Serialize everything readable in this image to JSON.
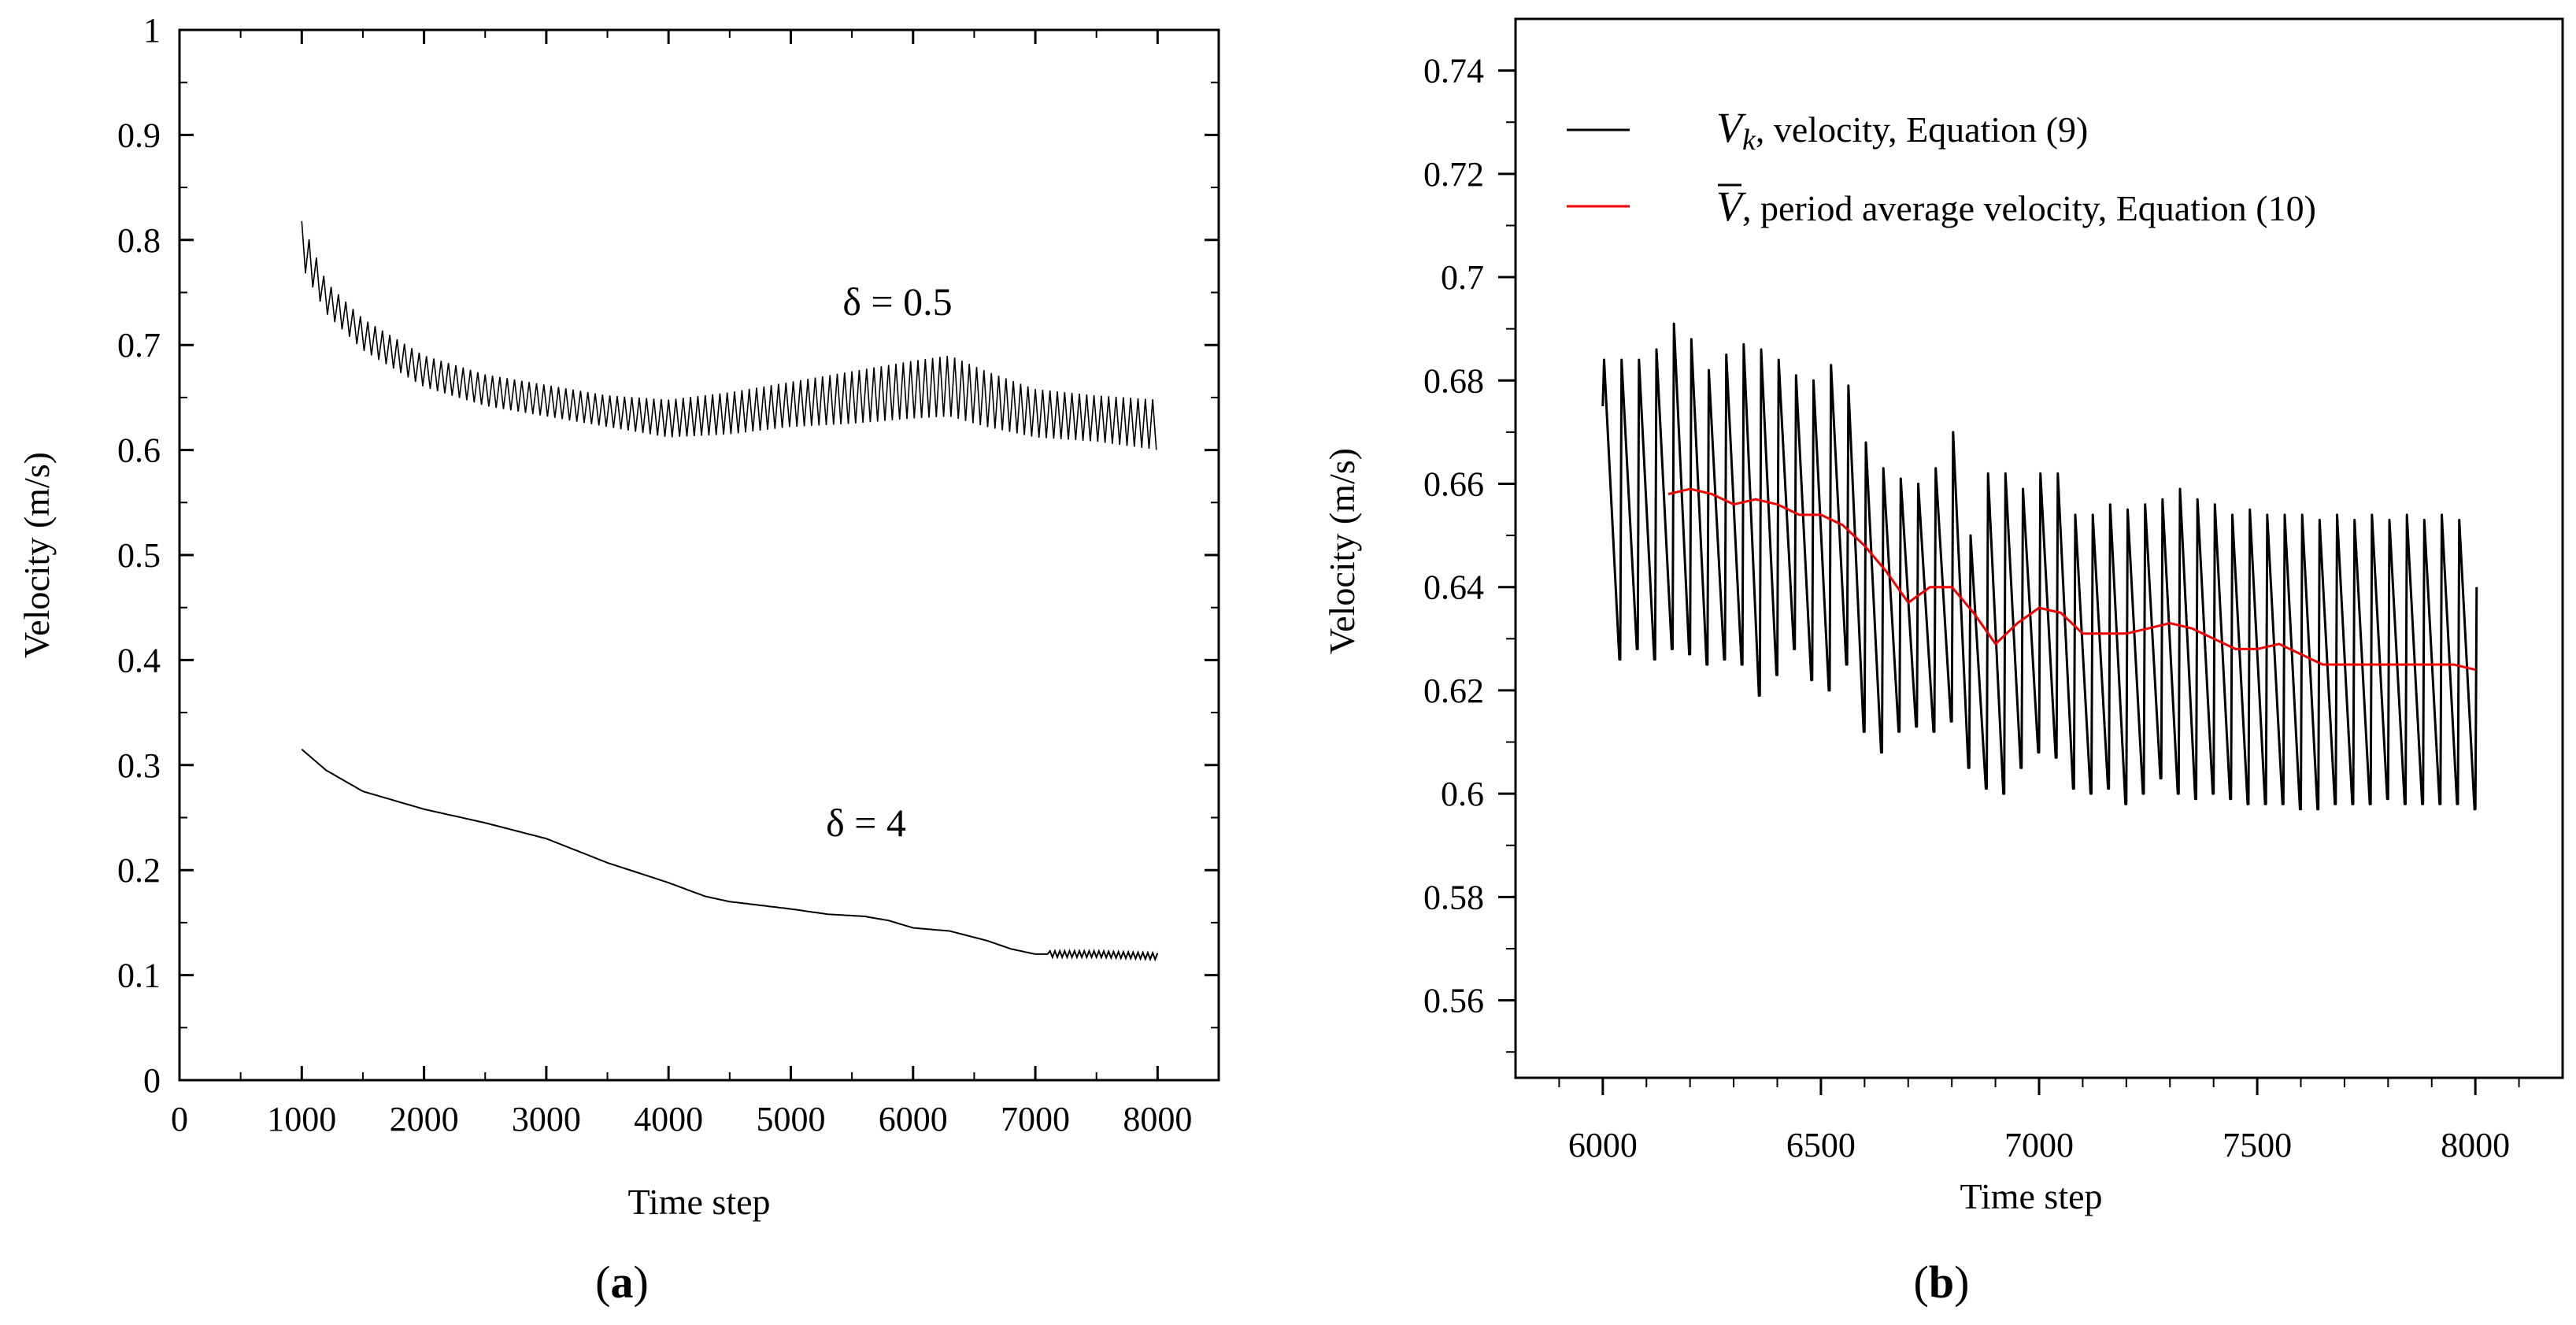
{
  "panels": [
    {
      "label_open": "(",
      "label_letter": "a",
      "label_close": ")"
    },
    {
      "label_open": "(",
      "label_letter": "b",
      "label_close": ")"
    }
  ],
  "chart_data": [
    {
      "type": "line",
      "xlabel": "Time step",
      "ylabel": "Velocity (m/s)",
      "xlim": [
        0,
        8500
      ],
      "ylim": [
        0,
        1
      ],
      "xticks": [
        "0",
        "1000",
        "2000",
        "3000",
        "4000",
        "5000",
        "6000",
        "7000",
        "8000"
      ],
      "yticks": [
        "0",
        "0.1",
        "0.2",
        "0.3",
        "0.4",
        "0.5",
        "0.6",
        "0.7",
        "0.8",
        "0.9",
        "1"
      ],
      "annotations": [
        {
          "text": "δ = 0.5",
          "x": 5700,
          "y": 0.735
        },
        {
          "text": "δ = 4",
          "x": 5600,
          "y": 0.245
        }
      ],
      "series": [
        {
          "name": "δ = 0.5",
          "color": "#000000",
          "oscillation_period": 60,
          "envelope_x": [
            1000,
            1200,
            1500,
            2000,
            2500,
            3000,
            3500,
            4000,
            4500,
            5000,
            5500,
            6000,
            6300,
            6600,
            7000,
            7500,
            8000
          ],
          "envelope_upper": [
            0.818,
            0.76,
            0.725,
            0.69,
            0.672,
            0.662,
            0.652,
            0.648,
            0.655,
            0.665,
            0.675,
            0.685,
            0.69,
            0.675,
            0.658,
            0.652,
            0.648
          ],
          "envelope_lower": [
            0.775,
            0.73,
            0.695,
            0.66,
            0.642,
            0.632,
            0.622,
            0.612,
            0.615,
            0.622,
            0.625,
            0.63,
            0.632,
            0.622,
            0.612,
            0.608,
            0.6
          ]
        },
        {
          "name": "δ = 4",
          "color": "#000000",
          "x": [
            1000,
            1200,
            1500,
            2000,
            2500,
            3000,
            3500,
            4000,
            4300,
            4500,
            5000,
            5300,
            5600,
            5800,
            6000,
            6300,
            6600,
            6800,
            7000,
            7200,
            7500,
            8000
          ],
          "y": [
            0.315,
            0.295,
            0.275,
            0.258,
            0.245,
            0.23,
            0.207,
            0.188,
            0.175,
            0.17,
            0.163,
            0.158,
            0.156,
            0.152,
            0.145,
            0.142,
            0.133,
            0.125,
            0.12,
            0.12,
            0.12,
            0.118
          ]
        }
      ]
    },
    {
      "type": "line",
      "xlabel": "Time step",
      "ylabel": "Velocity (m/s)",
      "xlim": [
        5800,
        8200
      ],
      "ylim": [
        0.545,
        0.75
      ],
      "xticks": [
        "6000",
        "6500",
        "7000",
        "7500",
        "8000"
      ],
      "yticks": [
        "0.56",
        "0.58",
        "0.6",
        "0.62",
        "0.64",
        "0.66",
        "0.68",
        "0.7",
        "0.72",
        "0.74"
      ],
      "legend_position": "top-left",
      "legend": [
        {
          "symbol": "V",
          "subscript": "k",
          "text": ", velocity, Equation (9)",
          "color": "#000000"
        },
        {
          "symbol": "V",
          "overline": true,
          "text": ", period average velocity, Equation (10)",
          "color": "#ee0000"
        }
      ],
      "series": [
        {
          "name": "Vk, velocity, Equation (9)",
          "color": "#000000",
          "oscillation_period": 40,
          "peaks_x": [
            6000,
            6040,
            6080,
            6120,
            6160,
            6200,
            6240,
            6280,
            6320,
            6360,
            6400,
            6440,
            6480,
            6520,
            6560,
            6600,
            6640,
            6680,
            6720,
            6760,
            6800,
            6840,
            6880,
            6920,
            6960,
            7000,
            7040,
            7080,
            7120,
            7160,
            7200,
            7240,
            7280,
            7320,
            7360,
            7400,
            7440,
            7480,
            7520,
            7560,
            7600,
            7640,
            7680,
            7720,
            7760,
            7800,
            7840,
            7880,
            7920,
            7960,
            8000
          ],
          "peaks": [
            0.684,
            0.684,
            0.684,
            0.686,
            0.691,
            0.688,
            0.682,
            0.685,
            0.687,
            0.686,
            0.684,
            0.681,
            0.68,
            0.683,
            0.679,
            0.668,
            0.663,
            0.661,
            0.66,
            0.663,
            0.67,
            0.65,
            0.662,
            0.662,
            0.659,
            0.662,
            0.662,
            0.654,
            0.654,
            0.656,
            0.655,
            0.656,
            0.657,
            0.659,
            0.657,
            0.656,
            0.654,
            0.655,
            0.654,
            0.654,
            0.654,
            0.653,
            0.654,
            0.653,
            0.654,
            0.653,
            0.654,
            0.653,
            0.654,
            0.653,
            0.64
          ],
          "troughs": [
            0.675,
            0.626,
            0.628,
            0.626,
            0.628,
            0.627,
            0.625,
            0.626,
            0.625,
            0.619,
            0.623,
            0.628,
            0.622,
            0.62,
            0.625,
            0.612,
            0.608,
            0.612,
            0.613,
            0.612,
            0.614,
            0.605,
            0.601,
            0.6,
            0.605,
            0.608,
            0.607,
            0.601,
            0.6,
            0.601,
            0.598,
            0.6,
            0.603,
            0.6,
            0.599,
            0.6,
            0.599,
            0.598,
            0.598,
            0.598,
            0.597,
            0.597,
            0.598,
            0.598,
            0.598,
            0.599,
            0.598,
            0.598,
            0.598,
            0.598,
            0.597
          ]
        },
        {
          "name": "V̄, period average velocity, Equation (10)",
          "color": "#ee0000",
          "x": [
            6150,
            6200,
            6250,
            6300,
            6350,
            6400,
            6450,
            6500,
            6550,
            6600,
            6650,
            6700,
            6750,
            6800,
            6850,
            6900,
            6950,
            7000,
            7050,
            7100,
            7150,
            7200,
            7250,
            7300,
            7350,
            7400,
            7450,
            7500,
            7550,
            7600,
            7650,
            7700,
            7750,
            7800,
            7850,
            7900,
            7950,
            8000
          ],
          "y": [
            0.658,
            0.659,
            0.658,
            0.656,
            0.657,
            0.656,
            0.654,
            0.654,
            0.652,
            0.648,
            0.643,
            0.637,
            0.64,
            0.64,
            0.635,
            0.629,
            0.633,
            0.636,
            0.635,
            0.631,
            0.631,
            0.631,
            0.632,
            0.633,
            0.632,
            0.63,
            0.628,
            0.628,
            0.629,
            0.627,
            0.625,
            0.625,
            0.625,
            0.625,
            0.625,
            0.625,
            0.625,
            0.624
          ]
        }
      ]
    }
  ]
}
